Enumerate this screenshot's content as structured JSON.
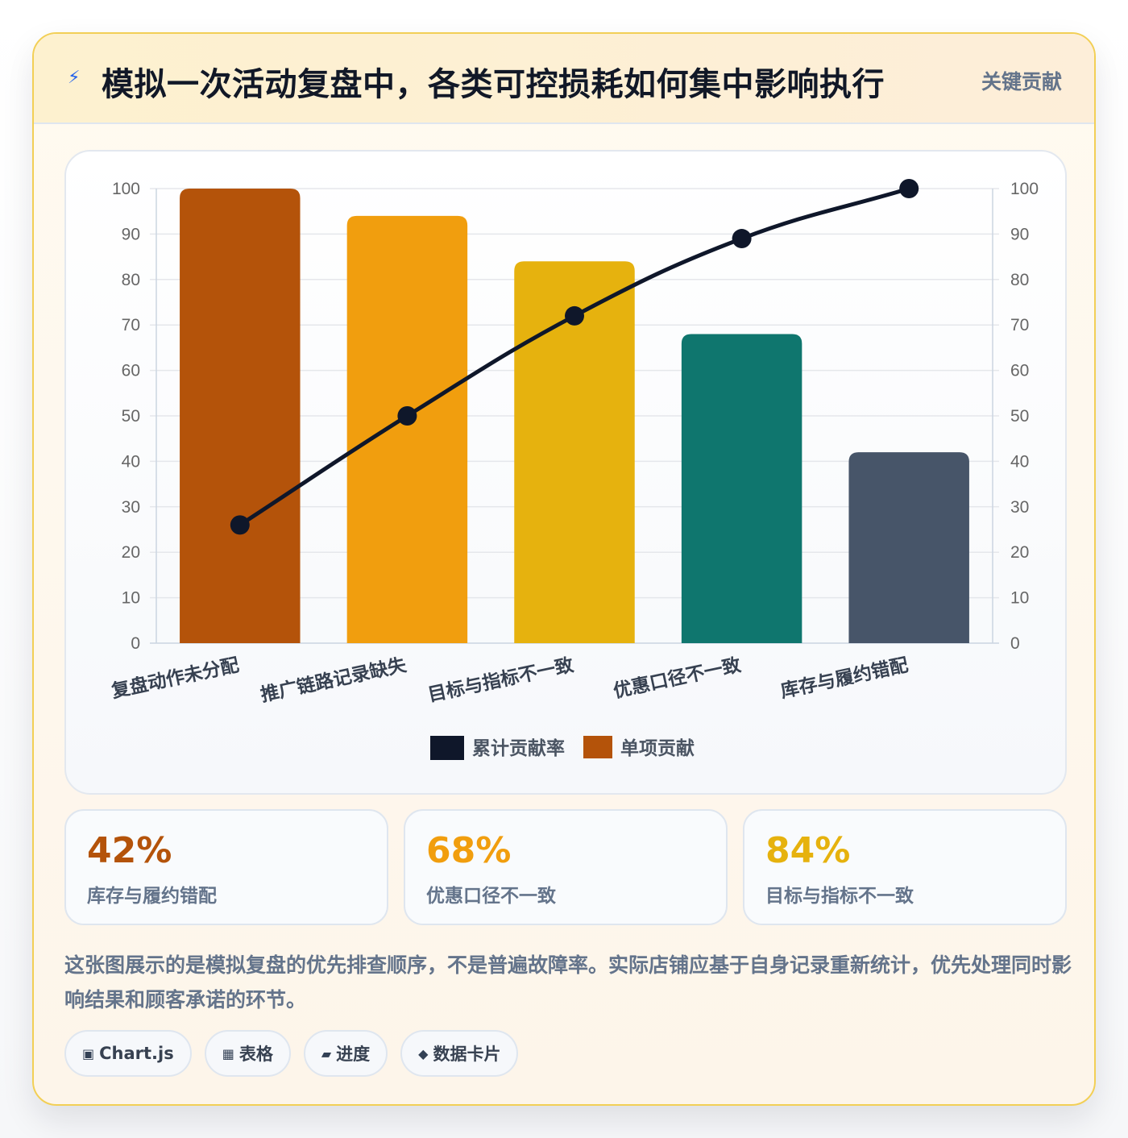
{
  "header": {
    "icon": "lightning-icon",
    "title": "模拟一次活动复盘中，各类可控损耗如何集中影响执行",
    "badge": "关键贡献"
  },
  "chart_data": {
    "type": "bar",
    "categories": [
      "复盘动作未分配",
      "推广链路记录缺失",
      "目标与指标不一致",
      "优惠口径不一致",
      "库存与履约错配"
    ],
    "series": [
      {
        "name": "单项贡献",
        "type": "bar",
        "values": [
          100,
          94,
          84,
          68,
          42
        ],
        "colors": [
          "#b4530a",
          "#f19e0e",
          "#e6b20e",
          "#0f766e",
          "#475569"
        ]
      },
      {
        "name": "累计贡献率",
        "type": "line",
        "values": [
          26,
          50,
          72,
          89,
          100
        ],
        "color": "#0f172a"
      }
    ],
    "legend": [
      "累计贡献率",
      "单项贡献"
    ],
    "legend_position": "bottom",
    "y_left": {
      "min": 0,
      "max": 100,
      "ticks": [
        0,
        10,
        20,
        30,
        40,
        50,
        60,
        70,
        80,
        90,
        100
      ]
    },
    "y_right": {
      "min": 0,
      "max": 100,
      "ticks": [
        0,
        10,
        20,
        30,
        40,
        50,
        60,
        70,
        80,
        90,
        100
      ]
    },
    "grid": true
  },
  "stats": [
    {
      "value": "42%",
      "label": "库存与履约错配",
      "color": "#b4530a"
    },
    {
      "value": "68%",
      "label": "优惠口径不一致",
      "color": "#f19e0e"
    },
    {
      "value": "84%",
      "label": "目标与指标不一致",
      "color": "#e6b20e"
    }
  ],
  "note": "这张图展示的是模拟复盘的优先排查顺序，不是普遍故障率。实际店铺应基于自身记录重新统计，优先处理同时影响结果和顾客承诺的环节。",
  "tags": [
    {
      "icon": "chart-icon",
      "glyph": "▣",
      "label": "Chart.js"
    },
    {
      "icon": "table-icon",
      "glyph": "▦",
      "label": "表格"
    },
    {
      "icon": "progress-icon",
      "glyph": "▰",
      "label": "进度"
    },
    {
      "icon": "diamond-icon",
      "glyph": "◆",
      "label": "数据卡片"
    }
  ]
}
